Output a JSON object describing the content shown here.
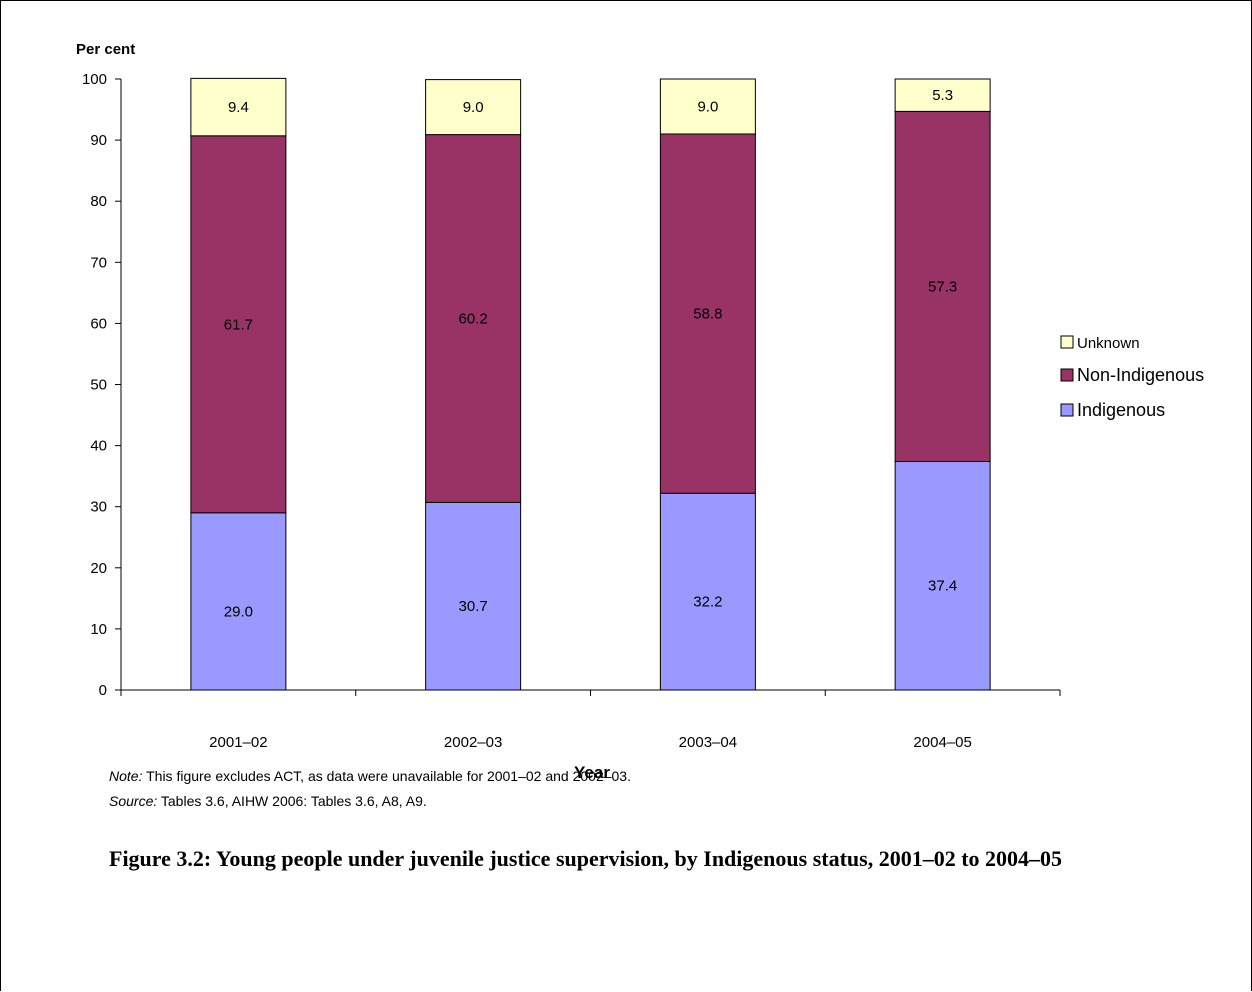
{
  "chart_data": {
    "type": "bar",
    "stacked": true,
    "categories": [
      "2001–02",
      "2002–03",
      "2003–04",
      "2004–05"
    ],
    "series": [
      {
        "name": "Indigenous",
        "values": [
          29.0,
          30.7,
          32.2,
          37.4
        ],
        "color": "#9999ff"
      },
      {
        "name": "Non-Indigenous",
        "values": [
          61.7,
          60.2,
          58.8,
          57.3
        ],
        "color": "#993366"
      },
      {
        "name": "Unknown",
        "values": [
          9.4,
          9.0,
          9.0,
          5.3
        ],
        "color": "#ffffcc"
      }
    ],
    "data_labels": [
      [
        "29.0",
        "30.7",
        "32.2",
        "37.4"
      ],
      [
        "61.7",
        "60.2",
        "58.8",
        "57.3"
      ],
      [
        "9.4",
        "9.0",
        "9.0",
        "5.3"
      ]
    ],
    "legend_order": [
      "Unknown",
      "Non-Indigenous",
      "Indigenous"
    ],
    "legend_position": "right",
    "ylabel": "Per cent",
    "xlabel": "Year",
    "ylim": [
      0,
      100
    ],
    "yticks": [
      0,
      10,
      20,
      30,
      40,
      50,
      60,
      70,
      80,
      90,
      100
    ],
    "grid": false
  },
  "note": {
    "label": "Note:",
    "text": " This figure excludes ACT, as data were unavailable for 2001–02 and 2002–03."
  },
  "source": {
    "label": "Source:",
    "text": " Tables 3.6, AIHW 2006: Tables 3.6, A8, A9."
  },
  "caption": "Figure 3.2: Young people under juvenile justice supervision, by Indigenous status, 2001–02 to 2004–05"
}
